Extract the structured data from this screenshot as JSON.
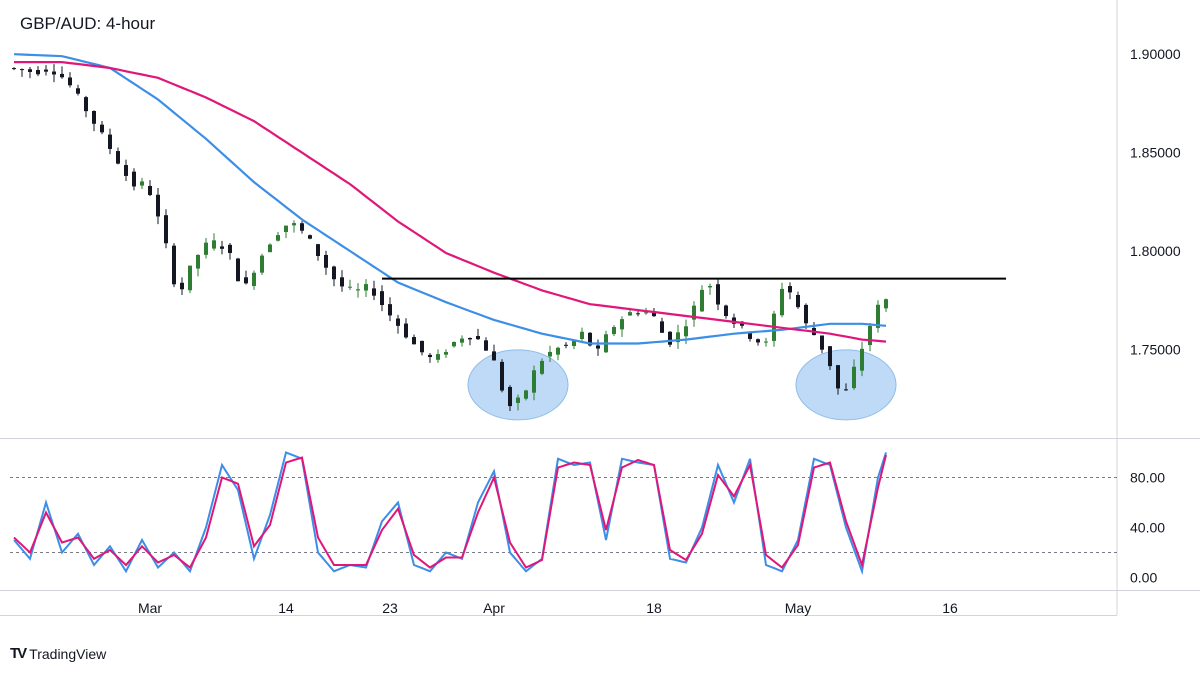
{
  "title": "GBP/AUD: 4-hour",
  "brand": {
    "logo_text": "TV",
    "name": "TradingView"
  },
  "colors": {
    "up": "#2e7d32",
    "down": "#131722",
    "sma_fast": "#3d8ee6",
    "sma_slow": "#e0177a",
    "stoch_k": "#3d8ee6",
    "stoch_d": "#e0177a",
    "resistance": "#000000",
    "highlight_fill": "#b3d3f5",
    "highlight_stroke": "#8fbdea",
    "grid": "#d1d4dc",
    "text": "#131722"
  },
  "chart_data": [
    {
      "type": "candlestick",
      "title": "GBP/AUD: 4-hour",
      "y_axis": {
        "ticks": [
          "1.90000",
          "1.85000",
          "1.80000",
          "1.75000"
        ],
        "range": [
          1.705,
          1.925
        ],
        "side": "right"
      },
      "x_axis": {
        "ticks": [
          "Mar",
          "14",
          "23",
          "Apr",
          "18",
          "May",
          "16"
        ]
      },
      "price_path": [
        [
          0,
          1.893
        ],
        [
          3,
          1.891
        ],
        [
          5,
          1.893
        ],
        [
          7,
          1.887
        ],
        [
          9,
          1.875
        ],
        [
          11,
          1.862
        ],
        [
          13,
          1.849
        ],
        [
          15,
          1.835
        ],
        [
          16,
          1.832
        ],
        [
          17,
          1.836
        ],
        [
          19,
          1.81
        ],
        [
          20,
          1.795
        ],
        [
          21,
          1.775
        ],
        [
          22,
          1.787
        ],
        [
          24,
          1.802
        ],
        [
          26,
          1.805
        ],
        [
          28,
          1.795
        ],
        [
          29,
          1.778
        ],
        [
          31,
          1.795
        ],
        [
          33,
          1.808
        ],
        [
          35,
          1.815
        ],
        [
          37,
          1.808
        ],
        [
          39,
          1.795
        ],
        [
          41,
          1.783
        ],
        [
          43,
          1.779
        ],
        [
          45,
          1.782
        ],
        [
          47,
          1.77
        ],
        [
          49,
          1.76
        ],
        [
          51,
          1.75
        ],
        [
          53,
          1.744
        ],
        [
          55,
          1.752
        ],
        [
          57,
          1.758
        ],
        [
          59,
          1.754
        ],
        [
          61,
          1.74
        ],
        [
          62,
          1.72
        ],
        [
          64,
          1.725
        ],
        [
          66,
          1.743
        ],
        [
          68,
          1.75
        ],
        [
          70,
          1.752
        ],
        [
          72,
          1.76
        ],
        [
          73,
          1.745
        ],
        [
          75,
          1.76
        ],
        [
          77,
          1.768
        ],
        [
          79,
          1.77
        ],
        [
          81,
          1.765
        ],
        [
          82,
          1.752
        ],
        [
          84,
          1.76
        ],
        [
          86,
          1.775
        ],
        [
          87,
          1.787
        ],
        [
          89,
          1.77
        ],
        [
          91,
          1.762
        ],
        [
          93,
          1.755
        ],
        [
          95,
          1.752
        ],
        [
          96,
          1.783
        ],
        [
          98,
          1.778
        ],
        [
          99,
          1.765
        ],
        [
          101,
          1.755
        ],
        [
          103,
          1.738
        ],
        [
          104,
          1.722
        ],
        [
          105,
          1.735
        ],
        [
          106,
          1.745
        ],
        [
          108,
          1.768
        ],
        [
          109,
          1.775
        ]
      ],
      "series": [
        {
          "name": "",
          "kind": "sma_fast",
          "x": [
            0,
            6,
            12,
            18,
            24,
            30,
            36,
            42,
            48,
            54,
            60,
            66,
            72,
            78,
            84,
            90,
            96,
            102,
            106,
            109
          ],
          "values": [
            1.9,
            1.899,
            1.893,
            1.877,
            1.857,
            1.835,
            1.816,
            1.8,
            1.784,
            1.774,
            1.765,
            1.758,
            1.753,
            1.753,
            1.755,
            1.758,
            1.76,
            1.763,
            1.763,
            1.762
          ]
        },
        {
          "name": "",
          "kind": "sma_slow",
          "x": [
            0,
            6,
            12,
            18,
            24,
            30,
            36,
            42,
            48,
            54,
            60,
            66,
            72,
            78,
            84,
            90,
            96,
            102,
            106,
            109
          ],
          "values": [
            1.896,
            1.896,
            1.893,
            1.888,
            1.878,
            1.866,
            1.85,
            1.834,
            1.815,
            1.799,
            1.789,
            1.78,
            1.773,
            1.77,
            1.767,
            1.764,
            1.761,
            1.758,
            1.755,
            1.754
          ]
        }
      ],
      "resistance_line": {
        "value": 1.786,
        "x_range": [
          46,
          124
        ]
      },
      "highlights": [
        {
          "x_center": 63,
          "y_center": 1.732
        },
        {
          "x_center": 104,
          "y_center": 1.732
        }
      ],
      "bars": 110
    },
    {
      "type": "line",
      "indicator": "stochastic",
      "y_axis": {
        "ticks": [
          "80.00",
          "40.00",
          "0.00"
        ],
        "range": [
          -10,
          110
        ],
        "levels": [
          80,
          20
        ]
      },
      "series": [
        {
          "name": "",
          "kind": "k",
          "x": [
            0,
            2,
            4,
            6,
            8,
            10,
            12,
            14,
            16,
            18,
            20,
            22,
            24,
            26,
            28,
            30,
            32,
            34,
            36,
            38,
            40,
            42,
            44,
            46,
            48,
            50,
            52,
            54,
            56,
            58,
            60,
            62,
            64,
            66,
            68,
            70,
            72,
            74,
            76,
            78,
            80,
            82,
            84,
            86,
            88,
            90,
            92,
            94,
            96,
            98,
            100,
            102,
            104,
            106,
            108,
            109
          ],
          "values": [
            30,
            15,
            60,
            20,
            35,
            10,
            25,
            5,
            30,
            8,
            20,
            5,
            40,
            90,
            70,
            15,
            50,
            100,
            95,
            20,
            5,
            10,
            8,
            45,
            60,
            10,
            5,
            20,
            15,
            60,
            85,
            20,
            5,
            15,
            95,
            90,
            92,
            30,
            95,
            92,
            90,
            15,
            12,
            40,
            90,
            60,
            95,
            10,
            5,
            30,
            95,
            90,
            40,
            5,
            80,
            100
          ]
        },
        {
          "name": "",
          "kind": "d",
          "x": [
            0,
            2,
            4,
            6,
            8,
            10,
            12,
            14,
            16,
            18,
            20,
            22,
            24,
            26,
            28,
            30,
            32,
            34,
            36,
            38,
            40,
            42,
            44,
            46,
            48,
            50,
            52,
            54,
            56,
            58,
            60,
            62,
            64,
            66,
            68,
            70,
            72,
            74,
            76,
            78,
            80,
            82,
            84,
            86,
            88,
            90,
            92,
            94,
            96,
            98,
            100,
            102,
            104,
            106,
            108,
            109
          ],
          "values": [
            32,
            20,
            52,
            28,
            32,
            15,
            22,
            10,
            25,
            12,
            18,
            8,
            32,
            80,
            75,
            25,
            42,
            92,
            96,
            32,
            10,
            10,
            10,
            38,
            55,
            18,
            8,
            16,
            16,
            52,
            80,
            28,
            8,
            14,
            88,
            92,
            90,
            38,
            88,
            94,
            90,
            22,
            14,
            35,
            82,
            65,
            90,
            18,
            8,
            26,
            88,
            92,
            45,
            10,
            72,
            98
          ]
        }
      ]
    }
  ]
}
